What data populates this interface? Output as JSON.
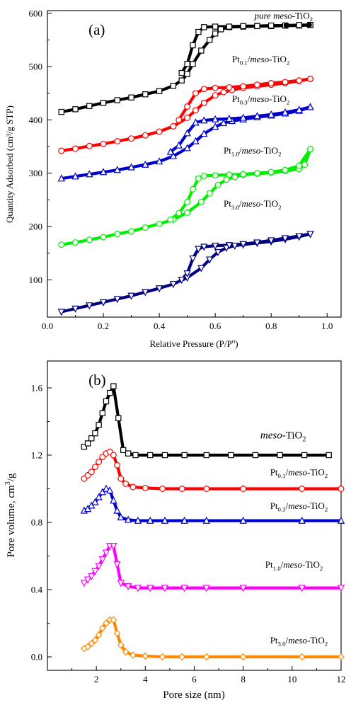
{
  "chart_data": [
    {
      "type": "line",
      "panel_label": "(a)",
      "xlabel": "Relative Pressure (P/P",
      "xlabel_sup": "o",
      "xlabel_end": ")",
      "ylabel": "Quantity Adsorbed (cm³/g STP)",
      "xlim": [
        0.0,
        1.05
      ],
      "ylim": [
        30,
        605
      ],
      "xticks": [
        0.0,
        0.2,
        0.4,
        0.6,
        0.8,
        1.0
      ],
      "xtick_labels": [
        "0.0",
        "0.2",
        "0.4",
        "0.6",
        "0.8",
        "1.0"
      ],
      "yticks": [
        100,
        200,
        300,
        400,
        500,
        600
      ],
      "ytick_labels": [
        "100",
        "200",
        "300",
        "400",
        "500",
        "600"
      ],
      "series": [
        {
          "name": "pure meso-TiO2",
          "label_parts": [
            [
              "pure meso",
              "i"
            ],
            [
              "-TiO",
              "n"
            ],
            [
              "2",
              "sub"
            ]
          ],
          "label_pos": [
            0.74,
            590
          ],
          "color": "#000000",
          "marker": "square",
          "adsorption": {
            "x": [
              0.05,
              0.1,
              0.15,
              0.2,
              0.25,
              0.3,
              0.35,
              0.4,
              0.45,
              0.48,
              0.5,
              0.52,
              0.55,
              0.58,
              0.6,
              0.62,
              0.65,
              0.7,
              0.75,
              0.8,
              0.85,
              0.9,
              0.94
            ],
            "y": [
              415,
              420,
              426,
              432,
              437,
              442,
              448,
              454,
              464,
              474,
              486,
              505,
              530,
              550,
              562,
              570,
              574,
              575,
              576,
              576,
              577,
              577,
              578
            ]
          },
          "desorption": {
            "x": [
              0.94,
              0.9,
              0.85,
              0.8,
              0.75,
              0.7,
              0.65,
              0.6,
              0.56,
              0.54,
              0.52,
              0.5,
              0.48
            ],
            "y": [
              578,
              578,
              577,
              577,
              576,
              576,
              575,
              575,
              574,
              565,
              540,
              505,
              488
            ]
          }
        },
        {
          "name": "Pt0.1/meso-TiO2",
          "label_parts": [
            [
              "Pt",
              "n"
            ],
            [
              "0.1",
              "sub"
            ],
            [
              "/",
              "n"
            ],
            [
              "meso",
              "i"
            ],
            [
              "-TiO",
              "n"
            ],
            [
              "2",
              "sub"
            ]
          ],
          "label_pos": [
            0.66,
            508
          ],
          "color": "#ff0000",
          "marker": "circle",
          "adsorption": {
            "x": [
              0.05,
              0.1,
              0.15,
              0.2,
              0.25,
              0.3,
              0.35,
              0.4,
              0.45,
              0.5,
              0.53,
              0.56,
              0.6,
              0.63,
              0.66,
              0.7,
              0.75,
              0.8,
              0.85,
              0.9,
              0.94
            ],
            "y": [
              342,
              346,
              351,
              355,
              360,
              365,
              371,
              378,
              388,
              404,
              418,
              432,
              446,
              452,
              456,
              460,
              463,
              466,
              469,
              473,
              477
            ]
          },
          "desorption": {
            "x": [
              0.94,
              0.9,
              0.85,
              0.8,
              0.75,
              0.7,
              0.65,
              0.6,
              0.56,
              0.53,
              0.5,
              0.47
            ],
            "y": [
              477,
              474,
              471,
              469,
              466,
              463,
              461,
              460,
              458,
              450,
              425,
              400
            ]
          }
        },
        {
          "name": "Pt0.3/meso-TiO2",
          "label_parts": [
            [
              "Pt",
              "n"
            ],
            [
              "0.3",
              "sub"
            ],
            [
              "/",
              "n"
            ],
            [
              "meso",
              "i"
            ],
            [
              "-TiO",
              "n"
            ],
            [
              "2",
              "sub"
            ]
          ],
          "label_pos": [
            0.66,
            434
          ],
          "color": "#0000cc",
          "marker": "triangle-up",
          "adsorption": {
            "x": [
              0.05,
              0.1,
              0.15,
              0.2,
              0.25,
              0.3,
              0.35,
              0.4,
              0.45,
              0.5,
              0.53,
              0.56,
              0.6,
              0.63,
              0.66,
              0.7,
              0.75,
              0.8,
              0.85,
              0.9,
              0.94
            ],
            "y": [
              290,
              294,
              298,
              302,
              306,
              311,
              316,
              322,
              332,
              347,
              360,
              374,
              387,
              394,
              398,
              401,
              405,
              408,
              412,
              417,
              424
            ]
          },
          "desorption": {
            "x": [
              0.94,
              0.9,
              0.85,
              0.8,
              0.75,
              0.7,
              0.65,
              0.6,
              0.56,
              0.53,
              0.5,
              0.47,
              0.44
            ],
            "y": [
              424,
              419,
              414,
              410,
              407,
              404,
              402,
              401,
              399,
              395,
              375,
              352,
              340
            ]
          }
        },
        {
          "name": "Pt1.0/meso-TiO2",
          "label_parts": [
            [
              "Pt",
              "n"
            ],
            [
              "1.0",
              "sub"
            ],
            [
              "/",
              "n"
            ],
            [
              "meso",
              "i"
            ],
            [
              "-TiO",
              "n"
            ],
            [
              "2",
              "sub"
            ]
          ],
          "label_pos": [
            0.63,
            337
          ],
          "color": "#00ee00",
          "marker": "circle",
          "adsorption": {
            "x": [
              0.05,
              0.1,
              0.15,
              0.2,
              0.25,
              0.3,
              0.35,
              0.4,
              0.45,
              0.5,
              0.55,
              0.58,
              0.61,
              0.64,
              0.67,
              0.7,
              0.75,
              0.8,
              0.85,
              0.9,
              0.92,
              0.94
            ],
            "y": [
              166,
              170,
              175,
              180,
              186,
              191,
              198,
              205,
              213,
              226,
              246,
              262,
              278,
              288,
              293,
              297,
              299,
              301,
              304,
              308,
              316,
              345
            ]
          },
          "desorption": {
            "x": [
              0.94,
              0.9,
              0.85,
              0.8,
              0.75,
              0.7,
              0.65,
              0.6,
              0.56,
              0.54,
              0.52,
              0.5,
              0.47,
              0.44
            ],
            "y": [
              345,
              314,
              306,
              302,
              300,
              298,
              297,
              296,
              295,
              290,
              270,
              246,
              225,
              213
            ]
          }
        },
        {
          "name": "Pt3.0/meso-TiO2",
          "label_parts": [
            [
              "Pt",
              "n"
            ],
            [
              "3.0",
              "sub"
            ],
            [
              "/",
              "n"
            ],
            [
              "meso",
              "i"
            ],
            [
              "-TiO",
              "n"
            ],
            [
              "2",
              "sub"
            ]
          ],
          "label_pos": [
            0.63,
            237
          ],
          "color": "#000080",
          "marker": "triangle-down",
          "adsorption": {
            "x": [
              0.05,
              0.1,
              0.15,
              0.2,
              0.25,
              0.3,
              0.35,
              0.4,
              0.45,
              0.5,
              0.55,
              0.58,
              0.61,
              0.64,
              0.67,
              0.7,
              0.75,
              0.8,
              0.85,
              0.9,
              0.94
            ],
            "y": [
              40,
              46,
              52,
              58,
              64,
              70,
              77,
              84,
              92,
              104,
              122,
              138,
              152,
              160,
              164,
              166,
              169,
              172,
              176,
              181,
              186
            ]
          },
          "desorption": {
            "x": [
              0.94,
              0.9,
              0.85,
              0.8,
              0.75,
              0.7,
              0.65,
              0.6,
              0.56,
              0.54,
              0.52,
              0.5,
              0.48
            ],
            "y": [
              186,
              182,
              178,
              174,
              170,
              167,
              165,
              164,
              162,
              158,
              140,
              112,
              100
            ]
          }
        }
      ]
    },
    {
      "type": "line",
      "panel_label": "(b)",
      "xlabel": "Pore size (nm)",
      "ylabel": "Pore volume, cm",
      "ylabel_sup": "3",
      "ylabel_end": "/g",
      "xlim": [
        0,
        12
      ],
      "ylim": [
        -0.08,
        1.76
      ],
      "xticks": [
        2,
        4,
        6,
        8,
        10,
        12
      ],
      "xtick_labels": [
        "2",
        "4",
        "6",
        "8",
        "10",
        "12"
      ],
      "yticks": [
        0.0,
        0.4,
        0.8,
        1.2,
        1.6
      ],
      "ytick_labels": [
        "0.0",
        "0.4",
        "0.8",
        "1.2",
        "1.6"
      ],
      "series": [
        {
          "name": "meso-TiO2",
          "label_parts": [
            [
              "meso",
              "i"
            ],
            [
              "-TiO",
              "n"
            ],
            [
              "2",
              "sub"
            ]
          ],
          "label_pos": [
            8.7,
            1.3
          ],
          "label_size": 15,
          "color": "#000000",
          "marker": "square",
          "x": [
            1.5,
            1.65,
            1.8,
            1.95,
            2.1,
            2.25,
            2.4,
            2.55,
            2.7,
            2.9,
            3.1,
            3.3,
            3.6,
            4.2,
            4.8,
            5.6,
            6.5,
            7.5,
            8.5,
            9.5,
            10.5,
            11.5
          ],
          "y": [
            1.25,
            1.27,
            1.3,
            1.33,
            1.38,
            1.45,
            1.52,
            1.57,
            1.61,
            1.42,
            1.23,
            1.21,
            1.2,
            1.2,
            1.2,
            1.2,
            1.2,
            1.2,
            1.2,
            1.2,
            1.2,
            1.2
          ]
        },
        {
          "name": "Pt0.1/meso-TiO2",
          "label_parts": [
            [
              "Pt",
              "n"
            ],
            [
              "0.1",
              "sub"
            ],
            [
              "/",
              "n"
            ],
            [
              "meso",
              "i"
            ],
            [
              "-TiO",
              "n"
            ],
            [
              "2",
              "sub"
            ]
          ],
          "label_pos": [
            9.1,
            1.08
          ],
          "color": "#ff0000",
          "marker": "circle",
          "x": [
            1.5,
            1.65,
            1.8,
            1.95,
            2.1,
            2.25,
            2.4,
            2.55,
            2.7,
            2.85,
            3.0,
            3.2,
            3.5,
            4.0,
            4.7,
            5.5,
            6.5,
            8.0,
            10.4,
            12.0
          ],
          "y": [
            1.06,
            1.08,
            1.1,
            1.13,
            1.16,
            1.19,
            1.21,
            1.22,
            1.2,
            1.14,
            1.06,
            1.03,
            1.01,
            1.005,
            1.0,
            1.0,
            1.0,
            1.0,
            1.0,
            1.0
          ]
        },
        {
          "name": "Pt0.3/meso-TiO2",
          "label_parts": [
            [
              "Pt",
              "n"
            ],
            [
              "0.3",
              "sub"
            ],
            [
              "/",
              "n"
            ],
            [
              "meso",
              "i"
            ],
            [
              "-TiO",
              "n"
            ],
            [
              "2",
              "sub"
            ]
          ],
          "label_pos": [
            9.1,
            0.88
          ],
          "color": "#0000cc",
          "marker": "triangle-up",
          "x": [
            1.5,
            1.65,
            1.8,
            1.95,
            2.1,
            2.25,
            2.4,
            2.55,
            2.7,
            2.85,
            3.0,
            3.3,
            3.7,
            4.2,
            4.8,
            5.6,
            6.5,
            8.0,
            10.4,
            12.0
          ],
          "y": [
            0.87,
            0.88,
            0.9,
            0.92,
            0.95,
            0.98,
            1.0,
            0.99,
            0.93,
            0.87,
            0.83,
            0.815,
            0.81,
            0.81,
            0.81,
            0.81,
            0.81,
            0.81,
            0.81,
            0.81
          ]
        },
        {
          "name": "Pt1.0/meso-TiO2",
          "label_parts": [
            [
              "Pt",
              "n"
            ],
            [
              "1.0",
              "sub"
            ],
            [
              "/",
              "n"
            ],
            [
              "meso",
              "i"
            ],
            [
              "-TiO",
              "n"
            ],
            [
              "2",
              "sub"
            ]
          ],
          "label_pos": [
            8.9,
            0.53
          ],
          "color": "#ff00ff",
          "marker": "triangle-down",
          "x": [
            1.5,
            1.65,
            1.8,
            1.95,
            2.1,
            2.25,
            2.4,
            2.55,
            2.7,
            2.85,
            3.0,
            3.3,
            3.7,
            4.2,
            4.8,
            5.6,
            6.5,
            8.0,
            10.4,
            12.0
          ],
          "y": [
            0.44,
            0.46,
            0.48,
            0.51,
            0.54,
            0.58,
            0.62,
            0.66,
            0.66,
            0.55,
            0.44,
            0.42,
            0.41,
            0.41,
            0.41,
            0.41,
            0.41,
            0.41,
            0.41,
            0.41
          ]
        },
        {
          "name": "Pt3.0/meso-TiO2",
          "label_parts": [
            [
              "Pt",
              "n"
            ],
            [
              "3.0",
              "sub"
            ],
            [
              "/",
              "n"
            ],
            [
              "meso",
              "i"
            ],
            [
              "-TiO",
              "n"
            ],
            [
              "2",
              "sub"
            ]
          ],
          "label_pos": [
            9.1,
            0.08
          ],
          "color": "#ff8800",
          "marker": "diamond",
          "x": [
            1.5,
            1.65,
            1.8,
            1.95,
            2.1,
            2.25,
            2.4,
            2.55,
            2.7,
            2.85,
            3.0,
            3.2,
            3.5,
            4.0,
            4.7,
            5.5,
            6.5,
            8.0,
            10.4,
            12.0
          ],
          "y": [
            0.05,
            0.06,
            0.08,
            0.1,
            0.13,
            0.17,
            0.2,
            0.22,
            0.22,
            0.14,
            0.07,
            0.03,
            0.01,
            0.005,
            0.0,
            0.0,
            0.0,
            0.0,
            0.0,
            0.0
          ]
        }
      ]
    }
  ]
}
